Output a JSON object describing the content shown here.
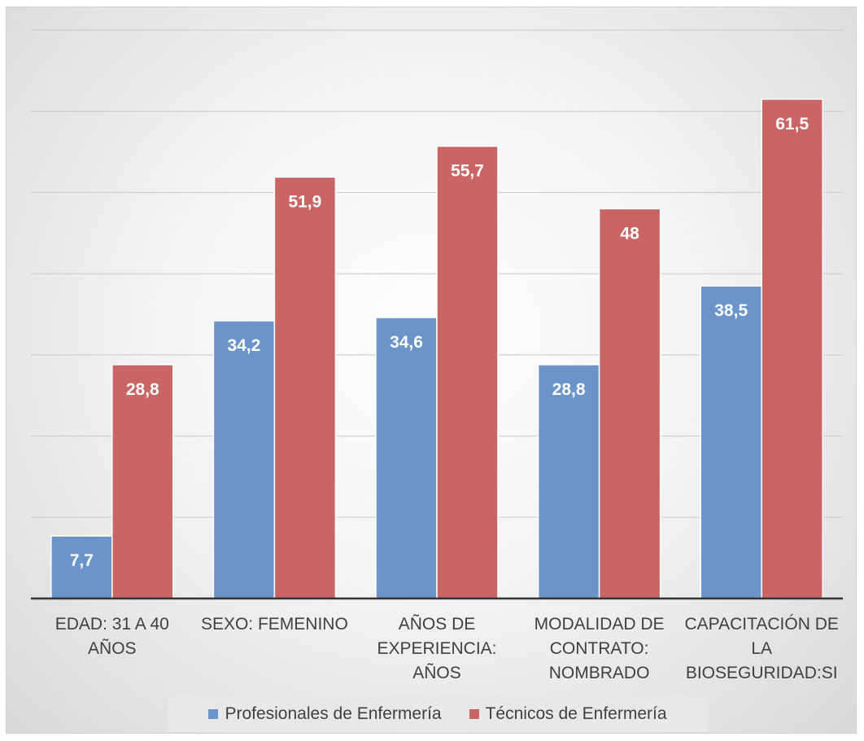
{
  "chart_data": {
    "type": "bar",
    "categories": [
      [
        "EDAD: 31 A 40",
        "AÑOS"
      ],
      [
        "SEXO: FEMENINO"
      ],
      [
        "AÑOS DE",
        "EXPERIENCIA: AÑOS"
      ],
      [
        "MODALIDAD DE",
        "CONTRATO:",
        "NOMBRADO"
      ],
      [
        "CAPACITACIÓN DE",
        "LA",
        "BIOSEGURIDAD:SI"
      ]
    ],
    "series": [
      {
        "name": "Profesionales de Enfermería",
        "color": "#6b95c9",
        "values": [
          7.7,
          34.2,
          34.6,
          28.8,
          38.5
        ],
        "labels": [
          "7,7",
          "34,2",
          "34,6",
          "28,8",
          "38,5"
        ]
      },
      {
        "name": "Técnicos de Enfermería",
        "color": "#c96565",
        "values": [
          28.8,
          51.9,
          55.7,
          48,
          61.5
        ],
        "labels": [
          "28,8",
          "51,9",
          "55,7",
          "48",
          "61,5"
        ]
      }
    ],
    "ylim": [
      0,
      70
    ],
    "grid": true,
    "legend_position": "bottom"
  }
}
